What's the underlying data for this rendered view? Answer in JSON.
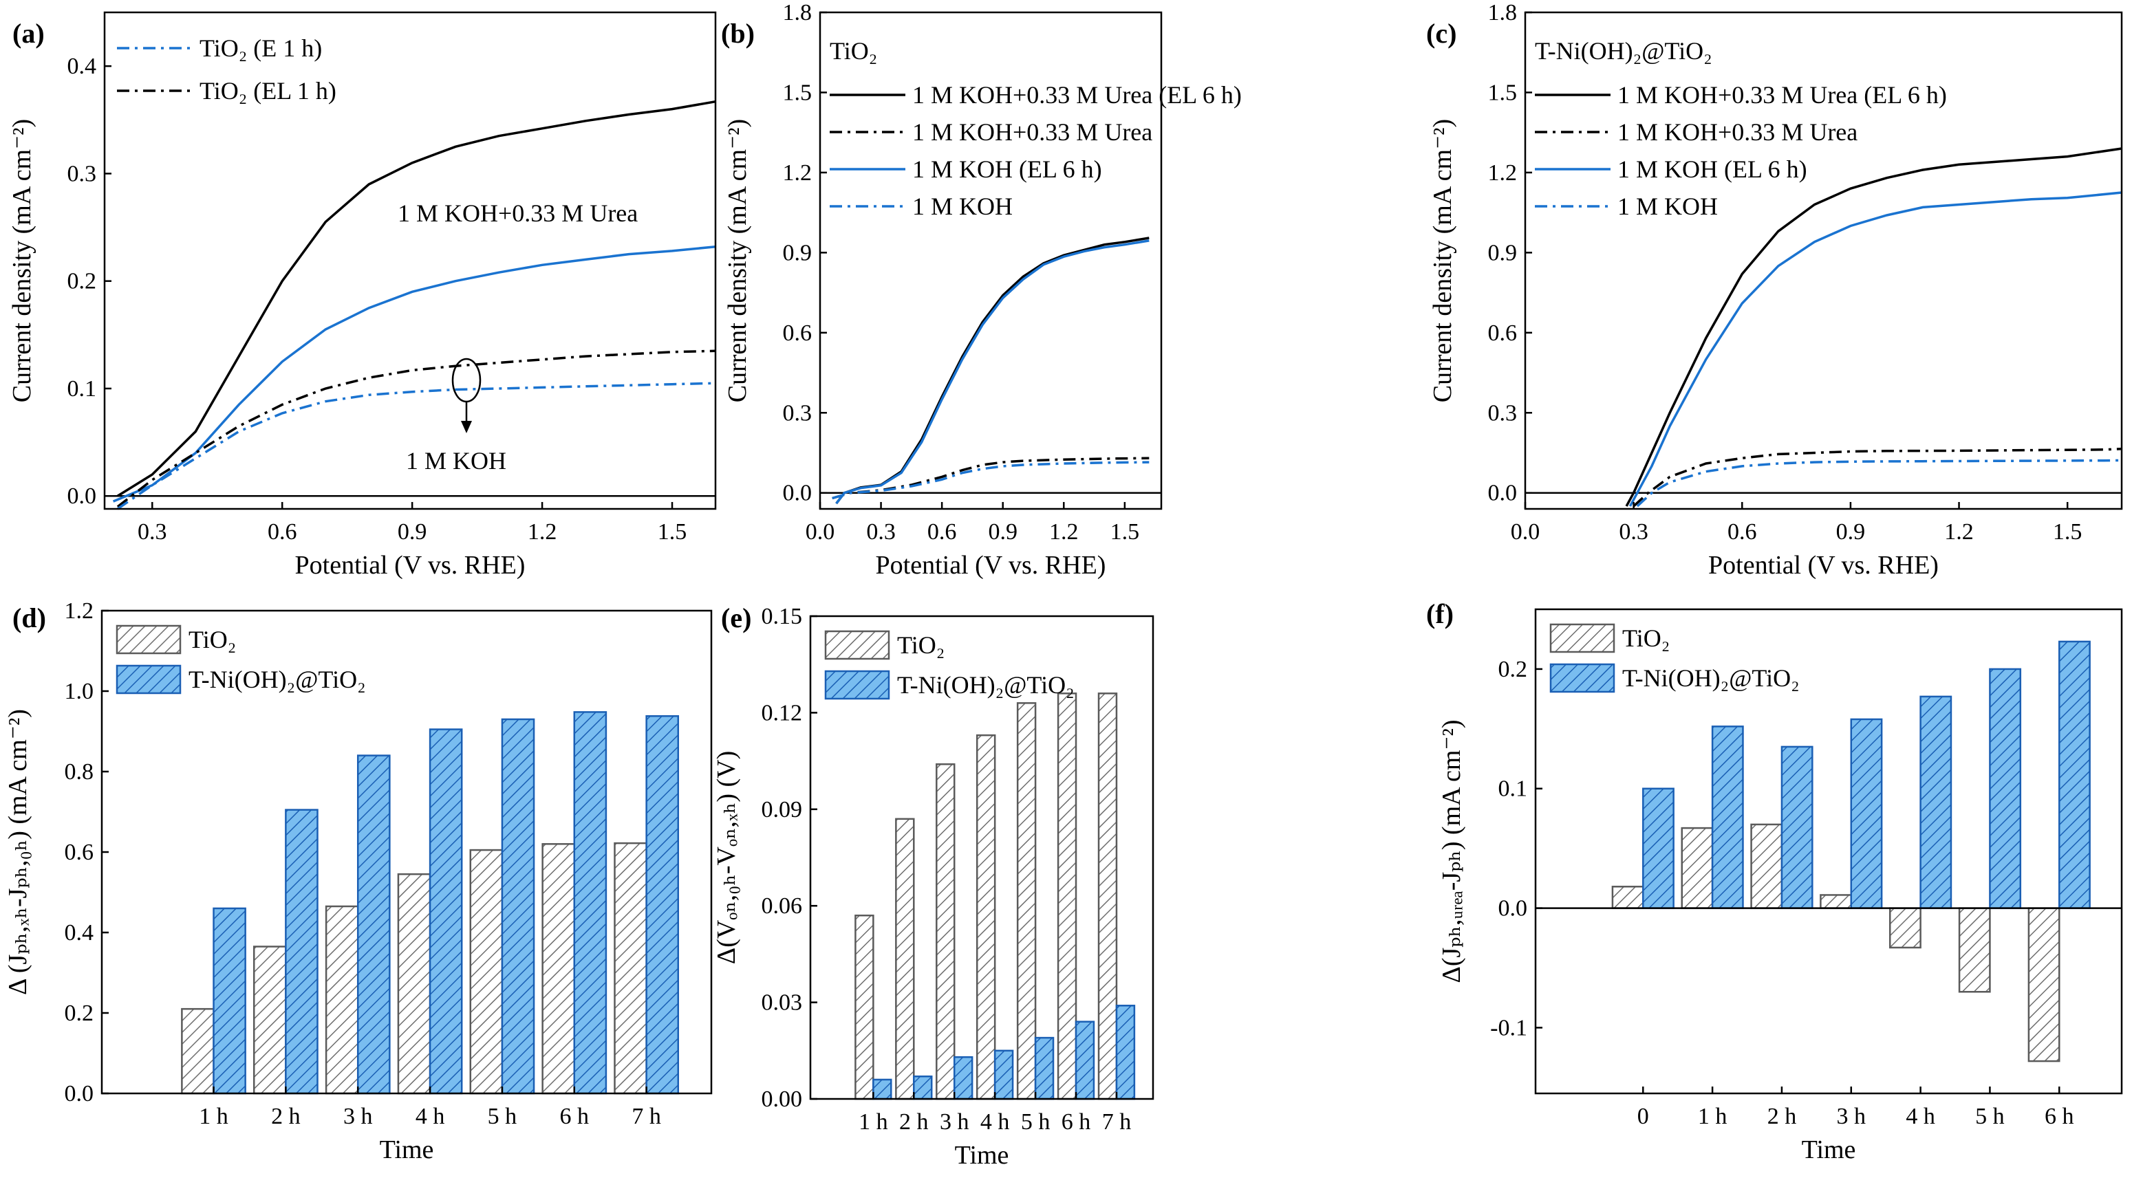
{
  "colors": {
    "black": "#000000",
    "blue": "#1a73d0",
    "gray_fill": "#ffffff",
    "gray_hatch": "#6e6e6e",
    "blue_fill": "#6fb3ea",
    "blue_hatch": "#1a5fb4"
  },
  "chart_data": [
    {
      "id": "a",
      "panel_label": "(a)",
      "type": "line",
      "xlabel": "Potential (V vs. RHE)",
      "ylabel": "Current density (mA cm⁻²)",
      "xlim": [
        0.19,
        1.6
      ],
      "ylim": [
        -0.012,
        0.45
      ],
      "xticks": [
        "0.3",
        "0.6",
        "0.9",
        "1.2",
        "1.5"
      ],
      "yticks": [
        "0.0",
        "0.1",
        "0.2",
        "0.3",
        "0.4"
      ],
      "legend": [
        {
          "text": "TiO₂ (E 1 h)",
          "color": "#1a73d0",
          "dash": "dashdot"
        },
        {
          "text": "TiO₂ (EL 1 h)",
          "color": "#000000",
          "dash": "dashdot"
        }
      ],
      "annotations": [
        "1 M KOH+0.33 M Urea",
        "1 M KOH"
      ],
      "series": [
        {
          "name": "TiO2 (EL 1 h), 1 M KOH+0.33 M Urea",
          "color": "#000000",
          "dash": "solid",
          "x": [
            0.22,
            0.3,
            0.4,
            0.5,
            0.6,
            0.7,
            0.8,
            0.9,
            1.0,
            1.1,
            1.2,
            1.3,
            1.4,
            1.5,
            1.6
          ],
          "y": [
            0.0,
            0.02,
            0.06,
            0.13,
            0.2,
            0.255,
            0.29,
            0.31,
            0.325,
            0.335,
            0.342,
            0.349,
            0.355,
            0.36,
            0.367
          ]
        },
        {
          "name": "TiO2 (E 1 h), 1 M KOH+0.33 M Urea",
          "color": "#1a73d0",
          "dash": "solid",
          "x": [
            0.21,
            0.3,
            0.4,
            0.5,
            0.6,
            0.7,
            0.8,
            0.9,
            1.0,
            1.1,
            1.2,
            1.3,
            1.4,
            1.5,
            1.6
          ],
          "y": [
            -0.005,
            0.01,
            0.04,
            0.085,
            0.125,
            0.155,
            0.175,
            0.19,
            0.2,
            0.208,
            0.215,
            0.22,
            0.225,
            0.228,
            0.232
          ]
        },
        {
          "name": "TiO2 (EL 1 h), 1 M KOH",
          "color": "#000000",
          "dash": "dashdot",
          "x": [
            0.22,
            0.3,
            0.4,
            0.5,
            0.6,
            0.7,
            0.8,
            0.9,
            1.0,
            1.1,
            1.2,
            1.3,
            1.4,
            1.5,
            1.6
          ],
          "y": [
            -0.01,
            0.015,
            0.04,
            0.065,
            0.085,
            0.1,
            0.11,
            0.117,
            0.121,
            0.124,
            0.127,
            0.13,
            0.132,
            0.134,
            0.135
          ]
        },
        {
          "name": "TiO2 (E 1 h), 1 M KOH",
          "color": "#1a73d0",
          "dash": "dashdot",
          "x": [
            0.22,
            0.3,
            0.4,
            0.5,
            0.6,
            0.7,
            0.8,
            0.9,
            1.0,
            1.1,
            1.2,
            1.3,
            1.4,
            1.5,
            1.6
          ],
          "y": [
            -0.012,
            0.01,
            0.035,
            0.06,
            0.077,
            0.088,
            0.094,
            0.097,
            0.099,
            0.1,
            0.101,
            0.102,
            0.103,
            0.104,
            0.105
          ]
        }
      ]
    },
    {
      "id": "b",
      "panel_label": "(b)",
      "type": "line",
      "xlabel": "Potential (V vs. RHE)",
      "ylabel": "Current density (mA cm⁻²)",
      "xlim": [
        0.0,
        1.68
      ],
      "ylim": [
        -0.06,
        1.8
      ],
      "xticks": [
        "0.0",
        "0.3",
        "0.6",
        "0.9",
        "1.2",
        "1.5"
      ],
      "yticks": [
        "0.0",
        "0.3",
        "0.6",
        "0.9",
        "1.2",
        "1.5",
        "1.8"
      ],
      "legend_title": "TiO₂",
      "legend": [
        {
          "text": "1 M KOH+0.33 M Urea (EL 6 h)",
          "color": "#000000",
          "dash": "solid"
        },
        {
          "text": "1 M KOH+0.33 M Urea",
          "color": "#000000",
          "dash": "dashdot"
        },
        {
          "text": "1 M KOH (EL 6 h)",
          "color": "#1a73d0",
          "dash": "solid"
        },
        {
          "text": "1 M KOH",
          "color": "#1a73d0",
          "dash": "dashdot"
        }
      ],
      "series": [
        {
          "name": "1 M KOH+0.33 M Urea (EL 6 h)",
          "color": "#000000",
          "dash": "solid",
          "x": [
            0.08,
            0.12,
            0.2,
            0.3,
            0.4,
            0.5,
            0.6,
            0.7,
            0.8,
            0.9,
            1.0,
            1.1,
            1.2,
            1.3,
            1.4,
            1.5,
            1.62
          ],
          "y": [
            -0.04,
            0.0,
            0.02,
            0.03,
            0.08,
            0.2,
            0.36,
            0.51,
            0.64,
            0.74,
            0.81,
            0.86,
            0.89,
            0.91,
            0.93,
            0.94,
            0.955
          ]
        },
        {
          "name": "1 M KOH (EL 6 h)",
          "color": "#1a73d0",
          "dash": "solid",
          "x": [
            0.08,
            0.12,
            0.2,
            0.3,
            0.4,
            0.5,
            0.6,
            0.7,
            0.8,
            0.9,
            1.0,
            1.1,
            1.2,
            1.3,
            1.4,
            1.5,
            1.62
          ],
          "y": [
            -0.04,
            0.0,
            0.018,
            0.028,
            0.075,
            0.19,
            0.35,
            0.5,
            0.63,
            0.73,
            0.8,
            0.855,
            0.885,
            0.905,
            0.92,
            0.93,
            0.945
          ]
        },
        {
          "name": "1 M KOH+0.33 M Urea",
          "color": "#000000",
          "dash": "dashdot",
          "x": [
            0.06,
            0.15,
            0.3,
            0.45,
            0.6,
            0.7,
            0.8,
            0.9,
            1.0,
            1.2,
            1.4,
            1.62
          ],
          "y": [
            -0.02,
            0.0,
            0.01,
            0.03,
            0.06,
            0.085,
            0.105,
            0.115,
            0.12,
            0.125,
            0.128,
            0.13
          ]
        },
        {
          "name": "1 M KOH",
          "color": "#1a73d0",
          "dash": "dashdot",
          "x": [
            0.06,
            0.15,
            0.3,
            0.45,
            0.6,
            0.7,
            0.8,
            0.9,
            1.0,
            1.2,
            1.4,
            1.62
          ],
          "y": [
            -0.02,
            0.0,
            0.008,
            0.025,
            0.05,
            0.075,
            0.09,
            0.1,
            0.105,
            0.11,
            0.113,
            0.115
          ]
        }
      ]
    },
    {
      "id": "c",
      "panel_label": "(c)",
      "type": "line",
      "xlabel": "Potential (V vs. RHE)",
      "ylabel": "Current density (mA cm⁻²)",
      "xlim": [
        0.0,
        1.65
      ],
      "ylim": [
        -0.06,
        1.8
      ],
      "xticks": [
        "0.0",
        "0.3",
        "0.6",
        "0.9",
        "1.2",
        "1.5"
      ],
      "yticks": [
        "0.0",
        "0.3",
        "0.6",
        "0.9",
        "1.2",
        "1.5",
        "1.8"
      ],
      "legend_title": "T-Ni(OH)₂@TiO₂",
      "legend": [
        {
          "text": "1 M KOH+0.33 M Urea (EL 6 h)",
          "color": "#000000",
          "dash": "solid"
        },
        {
          "text": "1 M KOH+0.33 M Urea",
          "color": "#000000",
          "dash": "dashdot"
        },
        {
          "text": "1 M KOH (EL 6 h)",
          "color": "#1a73d0",
          "dash": "solid"
        },
        {
          "text": "1 M KOH",
          "color": "#1a73d0",
          "dash": "dashdot"
        }
      ],
      "series": [
        {
          "name": "1 M KOH+0.33 M Urea (EL 6 h)",
          "color": "#000000",
          "dash": "solid",
          "x": [
            0.28,
            0.3,
            0.35,
            0.4,
            0.5,
            0.6,
            0.7,
            0.8,
            0.9,
            1.0,
            1.1,
            1.2,
            1.3,
            1.4,
            1.5,
            1.65
          ],
          "y": [
            -0.05,
            0.0,
            0.15,
            0.3,
            0.58,
            0.82,
            0.98,
            1.08,
            1.14,
            1.18,
            1.21,
            1.23,
            1.24,
            1.25,
            1.26,
            1.29
          ]
        },
        {
          "name": "1 M KOH (EL 6 h)",
          "color": "#1a73d0",
          "dash": "solid",
          "x": [
            0.29,
            0.31,
            0.35,
            0.4,
            0.5,
            0.6,
            0.7,
            0.8,
            0.9,
            1.0,
            1.1,
            1.2,
            1.3,
            1.4,
            1.5,
            1.65
          ],
          "y": [
            -0.05,
            0.0,
            0.1,
            0.25,
            0.5,
            0.71,
            0.85,
            0.94,
            1.0,
            1.04,
            1.07,
            1.08,
            1.09,
            1.1,
            1.105,
            1.125
          ]
        },
        {
          "name": "1 M KOH+0.33 M Urea",
          "color": "#000000",
          "dash": "dashdot",
          "x": [
            0.3,
            0.34,
            0.4,
            0.5,
            0.6,
            0.7,
            0.8,
            0.9,
            1.0,
            1.2,
            1.4,
            1.6,
            1.65
          ],
          "y": [
            -0.05,
            0.0,
            0.06,
            0.11,
            0.13,
            0.145,
            0.15,
            0.155,
            0.157,
            0.158,
            0.16,
            0.162,
            0.165
          ]
        },
        {
          "name": "1 M KOH",
          "color": "#1a73d0",
          "dash": "dashdot",
          "x": [
            0.31,
            0.35,
            0.4,
            0.5,
            0.6,
            0.7,
            0.8,
            0.9,
            1.0,
            1.2,
            1.4,
            1.6,
            1.65
          ],
          "y": [
            -0.05,
            0.0,
            0.04,
            0.08,
            0.1,
            0.11,
            0.115,
            0.117,
            0.118,
            0.119,
            0.12,
            0.121,
            0.122
          ]
        }
      ]
    },
    {
      "id": "d",
      "panel_label": "(d)",
      "type": "bar",
      "xlabel": "Time",
      "ylabel": "Δ (Jₚₕ,ₓₕ-Jₚₕ,₀ₕ) (mA cm⁻²)",
      "ylim": [
        0,
        1.2
      ],
      "yticks": [
        "0.0",
        "0.2",
        "0.4",
        "0.6",
        "0.8",
        "1.0",
        "1.2"
      ],
      "categories": [
        "1 h",
        "2 h",
        "3 h",
        "4 h",
        "5 h",
        "6 h",
        "7 h"
      ],
      "series": [
        {
          "name": "TiO₂",
          "values": [
            0.21,
            0.365,
            0.465,
            0.545,
            0.605,
            0.62,
            0.622
          ]
        },
        {
          "name": "T-Ni(OH)₂@TiO₂",
          "values": [
            0.46,
            0.705,
            0.84,
            0.905,
            0.93,
            0.948,
            0.938
          ]
        }
      ]
    },
    {
      "id": "e",
      "panel_label": "(e)",
      "type": "bar",
      "xlabel": "Time",
      "ylabel": "Δ(Vₒₙ,₀ₕ-Vₒₙ,ₓₕ) (V)",
      "ylim": [
        0,
        0.15
      ],
      "yticks": [
        "0.00",
        "0.03",
        "0.06",
        "0.09",
        "0.12",
        "0.15"
      ],
      "categories": [
        "1 h",
        "2 h",
        "3 h",
        "4 h",
        "5 h",
        "6 h",
        "7 h"
      ],
      "series": [
        {
          "name": "TiO₂",
          "values": [
            0.057,
            0.087,
            0.104,
            0.113,
            0.123,
            0.126,
            0.126
          ]
        },
        {
          "name": "T-Ni(OH)₂@TiO₂",
          "values": [
            0.006,
            0.007,
            0.013,
            0.015,
            0.019,
            0.024,
            0.029
          ]
        }
      ]
    },
    {
      "id": "f",
      "panel_label": "(f)",
      "type": "bar",
      "xlabel": "Time",
      "ylabel": "Δ(Jₚₕ,ᵤᵣₑₐ-Jₚₕ) (mA cm⁻²)",
      "ylim": [
        -0.155,
        0.25
      ],
      "yticks": [
        "-0.1",
        "0.0",
        "0.1",
        "0.2"
      ],
      "categories": [
        "0",
        "1 h",
        "2 h",
        "3 h",
        "4 h",
        "5 h",
        "6 h"
      ],
      "series": [
        {
          "name": "TiO₂",
          "values": [
            0.018,
            0.067,
            0.07,
            0.011,
            -0.033,
            -0.07,
            -0.128
          ]
        },
        {
          "name": "T-Ni(OH)₂@TiO₂",
          "values": [
            0.1,
            0.152,
            0.135,
            0.158,
            0.177,
            0.2,
            0.223
          ]
        }
      ]
    }
  ]
}
